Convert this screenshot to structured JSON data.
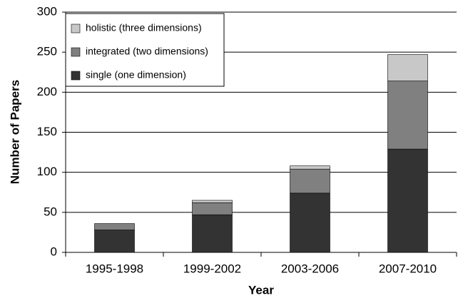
{
  "chart_data": {
    "type": "bar",
    "stacked": true,
    "xlabel": "Year",
    "ylabel": "Number of Papers",
    "categories": [
      "1995-1998",
      "1999-2002",
      "2003-2006",
      "2007-2010"
    ],
    "series": [
      {
        "name": "single (one dimension)",
        "color": "#333333",
        "values": [
          28,
          47,
          74,
          129
        ]
      },
      {
        "name": "integrated (two dimensions)",
        "color": "#808080",
        "values": [
          8,
          15,
          30,
          85
        ]
      },
      {
        "name": "holistic (three dimensions)",
        "color": "#c8c8c8",
        "values": [
          0,
          3,
          4,
          33
        ]
      }
    ],
    "ylim": [
      0,
      300
    ],
    "yticks": [
      0,
      50,
      100,
      150,
      200,
      250,
      300
    ],
    "grid": true,
    "legend": "upper left"
  }
}
